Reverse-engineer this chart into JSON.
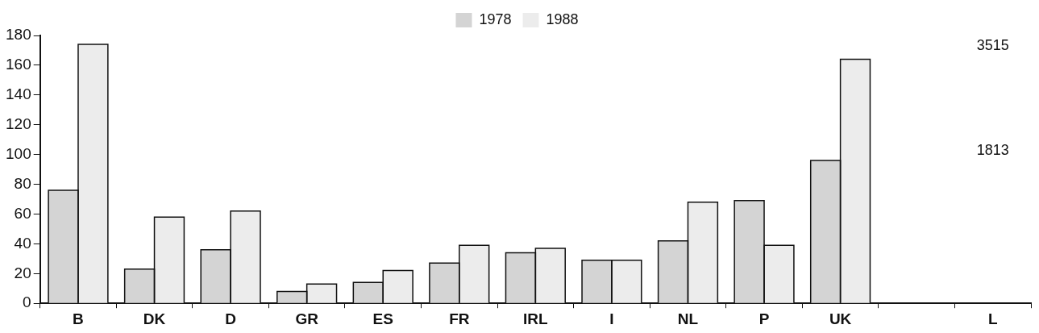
{
  "chart_data": {
    "type": "bar",
    "categories": [
      "B",
      "DK",
      "D",
      "GR",
      "ES",
      "FR",
      "IRL",
      "I",
      "NL",
      "P",
      "UK",
      null,
      "L"
    ],
    "series": [
      {
        "name": "1978",
        "color": "#d4d4d4",
        "values": [
          76,
          23,
          36,
          8,
          14,
          27,
          34,
          29,
          42,
          69,
          96,
          null,
          null
        ]
      },
      {
        "name": "1988",
        "color": "#ececec",
        "values": [
          174,
          58,
          62,
          13,
          22,
          39,
          37,
          29,
          68,
          39,
          164,
          null,
          null
        ]
      }
    ],
    "ylim": [
      0,
      180
    ],
    "yticks": [
      0,
      20,
      40,
      60,
      80,
      100,
      120,
      140,
      160,
      180
    ],
    "grid": false,
    "legend": "top",
    "annotations": [
      "1813",
      "3515"
    ]
  }
}
